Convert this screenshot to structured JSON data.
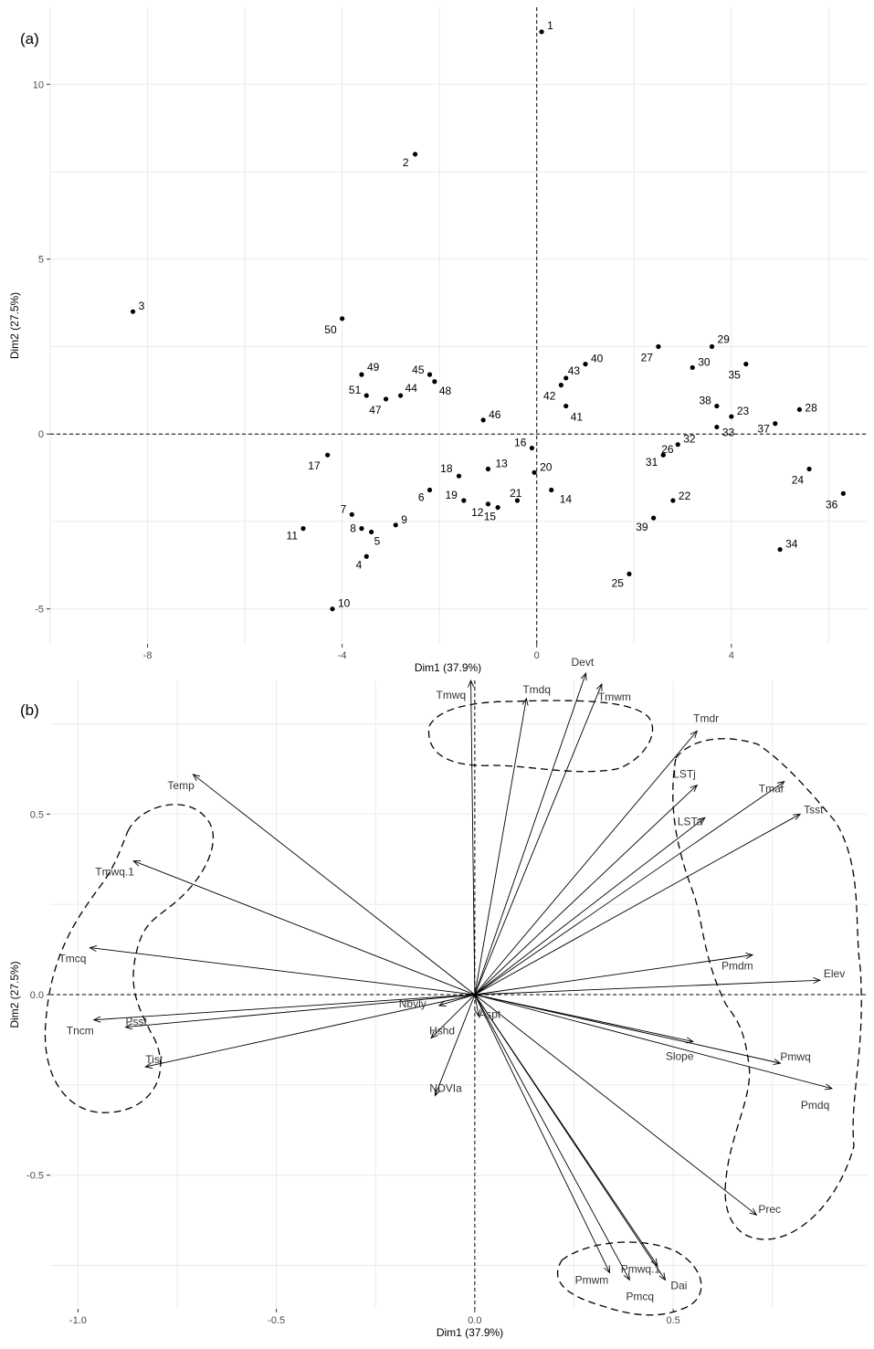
{
  "panel_a_label": "(a)",
  "panel_b_label": "(b)",
  "chart_data": [
    {
      "type": "scatter",
      "panel": "(a)",
      "xlabel": "Dim1 (37.9%)",
      "ylabel": "Dim2 (27.5%)",
      "xlim": [
        -10,
        6.8
      ],
      "ylim": [
        -6.0,
        12.2
      ],
      "xticks": [
        -8,
        -4,
        0,
        4
      ],
      "yticks": [
        -5,
        0,
        5,
        10
      ],
      "grid": true,
      "points": [
        {
          "label": "1",
          "x": 0.1,
          "y": 11.5
        },
        {
          "label": "2",
          "x": -2.5,
          "y": 8.0
        },
        {
          "label": "3",
          "x": -8.3,
          "y": 3.5
        },
        {
          "label": "4",
          "x": -3.5,
          "y": -3.5
        },
        {
          "label": "5",
          "x": -3.4,
          "y": -2.8
        },
        {
          "label": "6",
          "x": -2.2,
          "y": -1.6
        },
        {
          "label": "7",
          "x": -3.8,
          "y": -2.3
        },
        {
          "label": "8",
          "x": -3.6,
          "y": -2.7
        },
        {
          "label": "9",
          "x": -2.9,
          "y": -2.6
        },
        {
          "label": "10",
          "x": -4.2,
          "y": -5.0
        },
        {
          "label": "11",
          "x": -4.8,
          "y": -2.7
        },
        {
          "label": "12",
          "x": -1.0,
          "y": -2.0
        },
        {
          "label": "13",
          "x": -1.0,
          "y": -1.0
        },
        {
          "label": "14",
          "x": 0.3,
          "y": -1.6
        },
        {
          "label": "15",
          "x": -0.8,
          "y": -2.1
        },
        {
          "label": "16",
          "x": -0.1,
          "y": -0.4
        },
        {
          "label": "17",
          "x": -4.3,
          "y": -0.6
        },
        {
          "label": "18",
          "x": -1.6,
          "y": -1.2
        },
        {
          "label": "19",
          "x": -1.5,
          "y": -1.9
        },
        {
          "label": "20",
          "x": -0.05,
          "y": -1.1
        },
        {
          "label": "21",
          "x": -0.4,
          "y": -1.9
        },
        {
          "label": "22",
          "x": 2.8,
          "y": -1.9
        },
        {
          "label": "23",
          "x": 4.0,
          "y": 0.5
        },
        {
          "label": "24",
          "x": 5.6,
          "y": -1.0
        },
        {
          "label": "25",
          "x": 1.9,
          "y": -4.0
        },
        {
          "label": "26",
          "x": 2.6,
          "y": -0.6
        },
        {
          "label": "27",
          "x": 2.5,
          "y": 2.5
        },
        {
          "label": "28",
          "x": 5.4,
          "y": 0.7
        },
        {
          "label": "29",
          "x": 3.6,
          "y": 2.5
        },
        {
          "label": "30",
          "x": 3.2,
          "y": 1.9
        },
        {
          "label": "31",
          "x": 2.6,
          "y": -0.6
        },
        {
          "label": "32",
          "x": 2.9,
          "y": -0.3
        },
        {
          "label": "33",
          "x": 3.7,
          "y": 0.2
        },
        {
          "label": "34",
          "x": 5.0,
          "y": -3.3
        },
        {
          "label": "35",
          "x": 4.3,
          "y": 2.0
        },
        {
          "label": "36",
          "x": 6.3,
          "y": -1.7
        },
        {
          "label": "37",
          "x": 4.9,
          "y": 0.3
        },
        {
          "label": "38",
          "x": 3.7,
          "y": 0.8
        },
        {
          "label": "39",
          "x": 2.4,
          "y": -2.4
        },
        {
          "label": "40",
          "x": 1.0,
          "y": 2.0
        },
        {
          "label": "41",
          "x": 0.6,
          "y": 0.8
        },
        {
          "label": "42",
          "x": 0.5,
          "y": 1.4
        },
        {
          "label": "43",
          "x": 0.6,
          "y": 1.6
        },
        {
          "label": "44",
          "x": -2.8,
          "y": 1.1
        },
        {
          "label": "45",
          "x": -2.2,
          "y": 1.7
        },
        {
          "label": "46",
          "x": -1.1,
          "y": 0.4
        },
        {
          "label": "47",
          "x": -3.1,
          "y": 1.0
        },
        {
          "label": "48",
          "x": -2.1,
          "y": 1.5
        },
        {
          "label": "49",
          "x": -3.6,
          "y": 1.7
        },
        {
          "label": "50",
          "x": -4.0,
          "y": 3.3
        },
        {
          "label": "51",
          "x": -3.5,
          "y": 1.1
        }
      ]
    },
    {
      "type": "scatter",
      "subtype": "variable-loadings",
      "panel": "(b)",
      "xlabel": "Dim1 (37.9%)",
      "ylabel": "Dim2 (27.5%)",
      "xlim": [
        -1.07,
        0.99
      ],
      "ylim": [
        -0.87,
        0.87
      ],
      "xticks": [
        -1.0,
        -0.5,
        0.0,
        0.5
      ],
      "yticks": [
        -0.5,
        0.0,
        0.5
      ],
      "xtick_labels": [
        "-1.0",
        "-0.5",
        "0.0",
        "0.5"
      ],
      "ytick_labels": [
        "-0.5",
        "0.0",
        "0.5"
      ],
      "grid": true,
      "variables": [
        {
          "label": "Devt",
          "x": 0.28,
          "y": 0.89
        },
        {
          "label": "Tmwq",
          "x": -0.01,
          "y": 0.87
        },
        {
          "label": "Tmdq",
          "x": 0.13,
          "y": 0.82
        },
        {
          "label": "Tmwm",
          "x": 0.32,
          "y": 0.86
        },
        {
          "label": "Tmdr",
          "x": 0.56,
          "y": 0.73
        },
        {
          "label": "LSTj",
          "x": 0.56,
          "y": 0.58
        },
        {
          "label": "LSTa",
          "x": 0.58,
          "y": 0.49
        },
        {
          "label": "Tmar",
          "x": 0.78,
          "y": 0.59
        },
        {
          "label": "Tsst",
          "x": 0.82,
          "y": 0.5
        },
        {
          "label": "Pmdm",
          "x": 0.7,
          "y": 0.11
        },
        {
          "label": "Elev",
          "x": 0.87,
          "y": 0.04
        },
        {
          "label": "Pmwq",
          "x": 0.77,
          "y": -0.19
        },
        {
          "label": "Slope",
          "x": 0.55,
          "y": -0.13
        },
        {
          "label": "Pmdq",
          "x": 0.9,
          "y": -0.26
        },
        {
          "label": "Prec",
          "x": 0.71,
          "y": -0.61
        },
        {
          "label": "Pmwm",
          "x": 0.34,
          "y": -0.77
        },
        {
          "label": "Pmwq.1",
          "x": 0.46,
          "y": -0.75
        },
        {
          "label": "Pmcq",
          "x": 0.39,
          "y": -0.79
        },
        {
          "label": "Dai",
          "x": 0.48,
          "y": -0.79
        },
        {
          "label": "Temp",
          "x": -0.71,
          "y": 0.61
        },
        {
          "label": "Tmwq.1",
          "x": -0.86,
          "y": 0.37
        },
        {
          "label": "Tmcq",
          "x": -0.97,
          "y": 0.13
        },
        {
          "label": "Psst",
          "x": -0.88,
          "y": -0.09
        },
        {
          "label": "Tncm",
          "x": -0.96,
          "y": -0.07
        },
        {
          "label": "Tist",
          "x": -0.83,
          "y": -0.2
        },
        {
          "label": "Nbvly",
          "x": -0.09,
          "y": -0.03
        },
        {
          "label": "Hshd",
          "x": -0.11,
          "y": -0.12
        },
        {
          "label": "NDVIa",
          "x": -0.1,
          "y": -0.28
        },
        {
          "label": "Aspt",
          "x": 0.01,
          "y": -0.06
        }
      ]
    }
  ]
}
